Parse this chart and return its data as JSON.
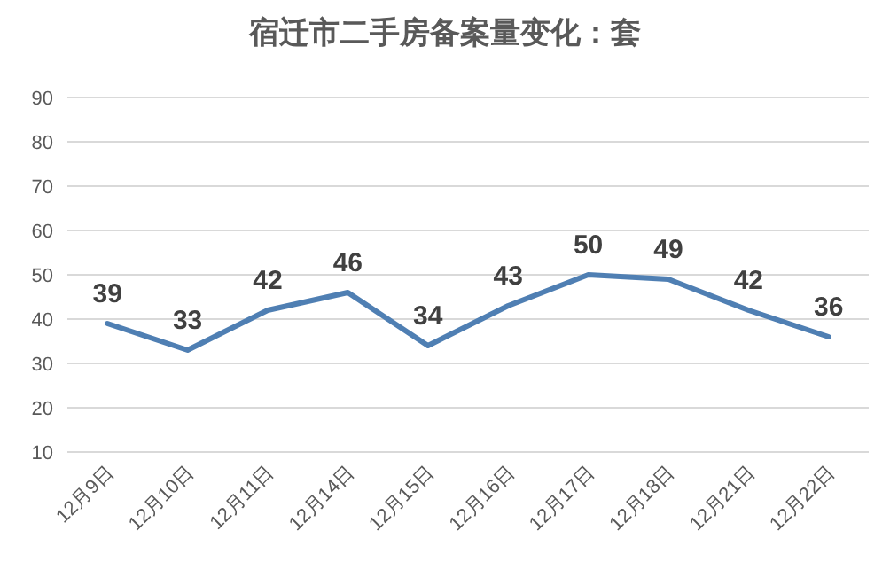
{
  "chart_data": {
    "type": "line",
    "title": "宿迁市二手房备案量变化：套",
    "categories": [
      "12月9日",
      "12月10日",
      "12月11日",
      "12月14日",
      "12月15日",
      "12月16日",
      "12月17日",
      "12月18日",
      "12月21日",
      "12月22日"
    ],
    "series": [
      {
        "color": "#4f7fb3",
        "values": [
          39,
          33,
          42,
          46,
          34,
          43,
          50,
          49,
          42,
          36
        ]
      }
    ],
    "ylim": [
      10,
      90
    ],
    "yticks": [
      10,
      20,
      30,
      40,
      50,
      60,
      70,
      80,
      90
    ],
    "grid": "y",
    "data_labels": true,
    "marker": "none",
    "line_style": "solid"
  }
}
